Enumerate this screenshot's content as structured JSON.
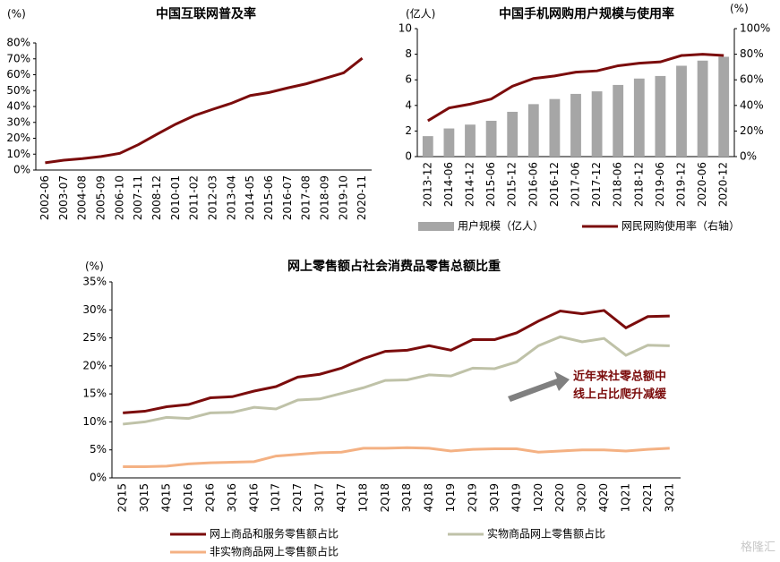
{
  "chart_data": [
    {
      "type": "line",
      "title": "中国互联网普及率",
      "y_label": "(%)",
      "categories": [
        "2002-06",
        "2003-07",
        "2004-08",
        "2005-09",
        "2006-10",
        "2007-11",
        "2008-12",
        "2010-01",
        "2011-02",
        "2012-03",
        "2013-04",
        "2014-05",
        "2015-06",
        "2016-07",
        "2017-08",
        "2018-09",
        "2019-10",
        "2020-11"
      ],
      "series": [
        {
          "color": "#7b0c0c",
          "values": [
            4.6,
            6.2,
            7.2,
            8.5,
            10.5,
            16,
            22.6,
            28.9,
            34.3,
            38.3,
            42.1,
            46.9,
            48.8,
            51.7,
            54.3,
            57.7,
            61.2,
            70.4
          ]
        }
      ],
      "ylim": [
        0,
        80
      ],
      "yticks": [
        {
          "value": 0,
          "label": "0%"
        },
        {
          "value": 10,
          "label": "10%"
        },
        {
          "value": 20,
          "label": "20%"
        },
        {
          "value": 30,
          "label": "30%"
        },
        {
          "value": 40,
          "label": "40%"
        },
        {
          "value": 50,
          "label": "50%"
        },
        {
          "value": 60,
          "label": "60%"
        },
        {
          "value": 70,
          "label": "70%"
        },
        {
          "value": 80,
          "label": "80%"
        }
      ]
    },
    {
      "type": "bar",
      "title": "中国手机网购用户规模与使用率",
      "y_label": "(亿人)",
      "y2_label": "(%)",
      "categories": [
        "2013-12",
        "2014-06",
        "2014-12",
        "2015-06",
        "2015-12",
        "2016-06",
        "2016-12",
        "2017-06",
        "2017-12",
        "2018-06",
        "2018-12",
        "2019-06",
        "2019-12",
        "2020-06",
        "2020-12"
      ],
      "series": [
        {
          "name": "用户规模（亿人）",
          "color": "#a6a6a6",
          "values": [
            1.6,
            2.2,
            2.5,
            2.8,
            3.5,
            4.1,
            4.5,
            4.9,
            5.1,
            5.6,
            6.1,
            6.3,
            7.1,
            7.5,
            7.8
          ]
        },
        {
          "name": "网民网购使用率（右轴）",
          "type": "line",
          "axis": "y2",
          "color": "#7b0c0c",
          "values": [
            28,
            38,
            41,
            45,
            55,
            61,
            63,
            66,
            67,
            71,
            73,
            74,
            79,
            80,
            79
          ]
        }
      ],
      "ylim": [
        0,
        10
      ],
      "yticks": [
        0,
        2,
        4,
        6,
        8,
        10
      ],
      "y2lim": [
        0,
        100
      ],
      "y2ticks": [
        {
          "value": 0,
          "label": "0%"
        },
        {
          "value": 20,
          "label": "20%"
        },
        {
          "value": 40,
          "label": "40%"
        },
        {
          "value": 60,
          "label": "60%"
        },
        {
          "value": 80,
          "label": "80%"
        },
        {
          "value": 100,
          "label": "100%"
        }
      ]
    },
    {
      "type": "line",
      "title": "网上零售额占社会消费品零售总额比重",
      "y_label": "(%)",
      "categories": [
        "2Q15",
        "3Q15",
        "4Q15",
        "1Q16",
        "2Q16",
        "3Q16",
        "4Q16",
        "1Q17",
        "2Q17",
        "3Q17",
        "4Q17",
        "1Q18",
        "2Q18",
        "3Q18",
        "4Q18",
        "1Q19",
        "2Q19",
        "3Q19",
        "4Q19",
        "1Q20",
        "2Q20",
        "3Q20",
        "4Q20",
        "1Q21",
        "2Q21",
        "3Q21"
      ],
      "series": [
        {
          "name": "网上商品和服务零售额占比",
          "color": "#7b0c0c",
          "values": [
            11.6,
            11.9,
            12.7,
            13.1,
            14.3,
            14.5,
            15.5,
            16.3,
            18.0,
            18.5,
            19.6,
            21.3,
            22.6,
            22.8,
            23.6,
            22.8,
            24.7,
            24.7,
            25.9,
            28.0,
            29.8,
            29.3,
            29.9,
            26.8,
            28.8,
            28.9
          ]
        },
        {
          "name": "实物商品网上零售额占比",
          "color": "#bfc2a8",
          "values": [
            9.6,
            10.0,
            10.8,
            10.6,
            11.6,
            11.7,
            12.6,
            12.3,
            13.9,
            14.1,
            15.1,
            16.1,
            17.4,
            17.5,
            18.4,
            18.2,
            19.6,
            19.5,
            20.7,
            23.6,
            25.2,
            24.3,
            24.9,
            21.9,
            23.7,
            23.6
          ]
        },
        {
          "name": "非实物商品网上零售额占比",
          "color": "#f4b183",
          "values": [
            2.0,
            2.0,
            2.1,
            2.5,
            2.7,
            2.8,
            2.9,
            3.9,
            4.2,
            4.5,
            4.6,
            5.3,
            5.3,
            5.4,
            5.3,
            4.8,
            5.1,
            5.2,
            5.2,
            4.6,
            4.8,
            5.0,
            5.0,
            4.8,
            5.1,
            5.3
          ]
        }
      ],
      "ylim": [
        0,
        35
      ],
      "yticks": [
        {
          "value": 0,
          "label": "0%"
        },
        {
          "value": 5,
          "label": "5%"
        },
        {
          "value": 10,
          "label": "10%"
        },
        {
          "value": 15,
          "label": "15%"
        },
        {
          "value": 20,
          "label": "20%"
        },
        {
          "value": 25,
          "label": "25%"
        },
        {
          "value": 30,
          "label": "30%"
        },
        {
          "value": 35,
          "label": "35%"
        }
      ],
      "annotation": [
        "近年来社零总额中",
        "线上占比爬升减缓"
      ]
    }
  ],
  "watermark": "格隆汇"
}
